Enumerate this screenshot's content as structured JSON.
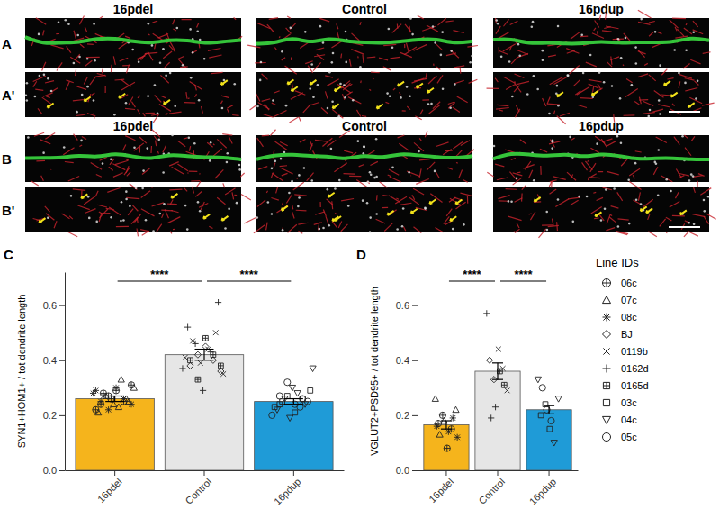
{
  "image_panels": [
    {
      "label": "A",
      "columns": [
        "16pdel",
        "Control",
        "16pdup"
      ]
    },
    {
      "label": "A'"
    },
    {
      "label": "B",
      "columns": [
        "16pdel",
        "Control",
        "16pdup"
      ]
    },
    {
      "label": "B'"
    }
  ],
  "legend_box": {
    "title": "Line IDs",
    "entries": [
      {
        "name": "06c",
        "marker": "circle-plus"
      },
      {
        "name": "07c",
        "marker": "triangle"
      },
      {
        "name": "08c",
        "marker": "asterisk"
      },
      {
        "name": "BJ",
        "marker": "diamond"
      },
      {
        "name": "0119b",
        "marker": "x"
      },
      {
        "name": "0162d",
        "marker": "plus"
      },
      {
        "name": "0165d",
        "marker": "square-plus"
      },
      {
        "name": "03c",
        "marker": "square"
      },
      {
        "name": "04c",
        "marker": "triangle-down"
      },
      {
        "name": "05c",
        "marker": "circle"
      }
    ]
  },
  "chart_data": [
    {
      "type": "bar",
      "title": "C",
      "y_label": "SYN1+HOM1+ / tot dendrite length",
      "categories": [
        "16pdel",
        "Control",
        "16pdup"
      ],
      "values": [
        0.26,
        0.42,
        0.25
      ],
      "errors": [
        0.01,
        0.02,
        0.01
      ],
      "colors": [
        "#f5b41c",
        "#e6e6e6",
        "#1f9bd7"
      ],
      "ylim": [
        0,
        0.72
      ],
      "yticks": [
        {
          "value": 0,
          "label": "0.0"
        },
        0.2,
        0.4,
        0.6
      ],
      "significance": [
        {
          "pair": [
            "16pdel",
            "Control"
          ],
          "label": "****"
        },
        {
          "pair": [
            "Control",
            "16pdup"
          ],
          "label": "****"
        }
      ],
      "points": [
        {
          "category": "16pdel",
          "line": "06c",
          "values": [
            0.24,
            0.27,
            0.29,
            0.25,
            0.31,
            0.22,
            0.28,
            0.26
          ]
        },
        {
          "category": "16pdel",
          "line": "07c",
          "values": [
            0.23,
            0.26,
            0.3,
            0.21,
            0.27,
            0.24,
            0.33,
            0.25
          ]
        },
        {
          "category": "16pdel",
          "line": "08c",
          "values": [
            0.28,
            0.25,
            0.22,
            0.3,
            0.26,
            0.24,
            0.29,
            0.27
          ]
        },
        {
          "category": "Control",
          "line": "BJ",
          "values": [
            0.38,
            0.42,
            0.45,
            0.4,
            0.36
          ]
        },
        {
          "category": "Control",
          "line": "0119b",
          "values": [
            0.41,
            0.47,
            0.39,
            0.44,
            0.5,
            0.35
          ]
        },
        {
          "category": "Control",
          "line": "0162d",
          "values": [
            0.52,
            0.46,
            0.29,
            0.43,
            0.61,
            0.37
          ]
        },
        {
          "category": "Control",
          "line": "0165d",
          "values": [
            0.4,
            0.33,
            0.48,
            0.42,
            0.38
          ]
        },
        {
          "category": "16pdup",
          "line": "03c",
          "values": [
            0.24,
            0.27,
            0.21,
            0.26,
            0.29,
            0.23,
            0.25
          ]
        },
        {
          "category": "16pdup",
          "line": "04c",
          "values": [
            0.19,
            0.28,
            0.24,
            0.37,
            0.22,
            0.26,
            0.3
          ]
        },
        {
          "category": "16pdup",
          "line": "05c",
          "values": [
            0.23,
            0.25,
            0.2,
            0.27,
            0.32,
            0.24,
            0.26
          ]
        }
      ]
    },
    {
      "type": "bar",
      "title": "D",
      "y_label": "VGLUT2+PSD95+ / tot dendrite length",
      "categories": [
        "16pdel",
        "Control",
        "16pdup"
      ],
      "values": [
        0.165,
        0.36,
        0.22
      ],
      "errors": [
        0.015,
        0.03,
        0.015
      ],
      "colors": [
        "#f5b41c",
        "#e6e6e6",
        "#1f9bd7"
      ],
      "ylim": [
        0,
        0.72
      ],
      "yticks": [
        {
          "value": 0,
          "label": "0.0"
        },
        0.2,
        0.4,
        0.6
      ],
      "significance": [
        {
          "pair": [
            "16pdel",
            "Control"
          ],
          "label": "****"
        },
        {
          "pair": [
            "Control",
            "16pdup"
          ],
          "label": "****"
        }
      ],
      "points": [
        {
          "category": "16pdel",
          "line": "06c",
          "values": [
            0.17,
            0.2,
            0.08,
            0.15
          ]
        },
        {
          "category": "16pdel",
          "line": "07c",
          "values": [
            0.22,
            0.26,
            0.13,
            0.18
          ]
        },
        {
          "category": "16pdel",
          "line": "08c",
          "values": [
            0.14,
            0.19,
            0.12,
            0.16
          ]
        },
        {
          "category": "Control",
          "line": "BJ",
          "values": [
            0.4,
            0.33
          ]
        },
        {
          "category": "Control",
          "line": "0119b",
          "values": [
            0.44,
            0.37,
            0.29
          ]
        },
        {
          "category": "Control",
          "line": "0162d",
          "values": [
            0.57,
            0.19,
            0.23
          ]
        },
        {
          "category": "Control",
          "line": "0165d",
          "values": [
            0.36,
            0.31
          ]
        },
        {
          "category": "16pdup",
          "line": "03c",
          "values": [
            0.2,
            0.24,
            0.15
          ]
        },
        {
          "category": "16pdup",
          "line": "04c",
          "values": [
            0.1,
            0.26,
            0.33
          ]
        },
        {
          "category": "16pdup",
          "line": "05c",
          "values": [
            0.3,
            0.22,
            0.18
          ]
        }
      ]
    }
  ]
}
